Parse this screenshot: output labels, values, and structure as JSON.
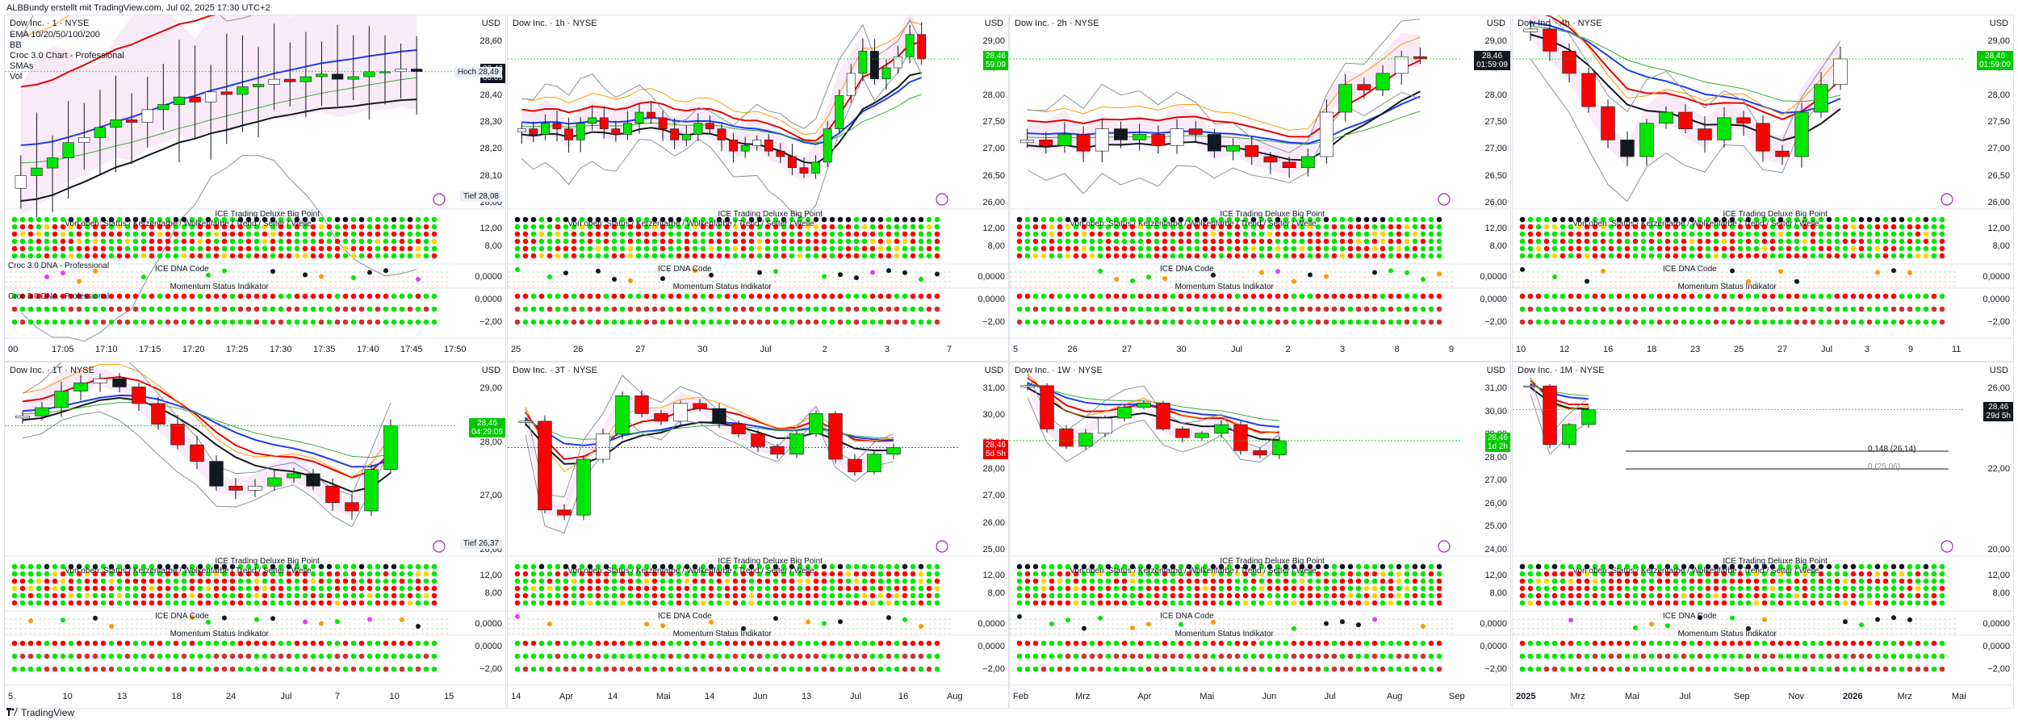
{
  "header": {
    "title": "ALBBundy erstellt mit TradingView.com, Jul 02, 2025 17:30 UTC+2"
  },
  "footer": {
    "brand": "TradingView",
    "logo": "tradingview-logo-icon"
  },
  "colors": {
    "up": "#00e600",
    "down": "#ff0000",
    "price_green": "#00c800",
    "price_red": "#f00000",
    "price_black": "#131722"
  },
  "common": {
    "currency": "USD",
    "sub1_title": "ICE Trading Deluxe Big Point",
    "sub1_sub": "Von oben: Status / Kerzenfarbe / Wolkenfarbe / Trend / Setter / Welle",
    "sub2_title": "ICE DNA Code",
    "sub3_title": "Momentum Status Indikator",
    "sub1_ticks": [
      "12,00",
      "8,00"
    ],
    "sub2_ticks": [
      "0,0000",
      "0,0000",
      "−2,00"
    ]
  },
  "panels": [
    {
      "id": "p1",
      "title": "Dow Inc. · 1 · NYSE",
      "info": [
        "EMA 10/20/50/100/200",
        "BB",
        "Croc 3.0 Chart - Professional",
        "SMAs",
        "Vol"
      ],
      "yticks": [
        "28,60",
        "28,50",
        "28,40",
        "28,30",
        "28,20",
        "28,10",
        "28,00"
      ],
      "price": {
        "value": "28,46",
        "sub": "00:09",
        "style": "black"
      },
      "hilo": [
        {
          "label": "Hoch",
          "value": "28,49"
        },
        {
          "label": "Tief",
          "value": "28,08"
        }
      ],
      "sub_labels": [
        "Croc 3.0 DNA - Professional",
        "Croc 3.0 DNA - Professional"
      ],
      "xlabels": [
        "00",
        "17:05",
        "17:10",
        "17:15",
        "17:20",
        "17:25",
        "17:30",
        "17:35",
        "17:40",
        "17:45",
        "17:50"
      ],
      "chart_data": {
        "type": "candlestick",
        "interval": "1",
        "ylim": [
          27.95,
          28.65
        ],
        "close": [
          28.05,
          28.08,
          28.12,
          28.18,
          28.2,
          28.24,
          28.27,
          28.26,
          28.31,
          28.33,
          28.36,
          28.34,
          28.38,
          28.37,
          28.4,
          28.41,
          28.43,
          28.42,
          28.44,
          28.45,
          28.43,
          28.44,
          28.46,
          28.46,
          28.47,
          28.46
        ]
      }
    },
    {
      "id": "p2",
      "title": "Dow Inc. · 1h · NYSE",
      "yticks": [
        "29,00",
        "28,50",
        "28,00",
        "27,50",
        "27,00",
        "26,50",
        "26,00"
      ],
      "price": {
        "value": "28,46",
        "sub": "59:09",
        "style": "green"
      },
      "xlabels": [
        "25",
        "26",
        "27",
        "30",
        "Jul",
        "2",
        "3",
        "7"
      ],
      "chart_data": {
        "type": "candlestick",
        "interval": "1h",
        "ylim": [
          25.9,
          29.1
        ],
        "close": [
          27.2,
          27.1,
          27.3,
          27.2,
          27.0,
          27.3,
          27.4,
          27.2,
          27.1,
          27.3,
          27.5,
          27.4,
          27.2,
          27.0,
          27.1,
          27.3,
          27.2,
          27.0,
          26.8,
          26.9,
          27.0,
          26.8,
          26.7,
          26.5,
          26.4,
          26.6,
          27.2,
          27.8,
          28.2,
          28.6,
          28.1,
          28.3,
          28.5,
          28.9,
          28.46
        ]
      }
    },
    {
      "id": "p3",
      "title": "Dow Inc. · 2h · NYSE",
      "yticks": [
        "29,00",
        "28,50",
        "28,00",
        "27,50",
        "27,00",
        "26,50",
        "26,00"
      ],
      "price": {
        "value": "28,46",
        "sub": "01:59:09",
        "style": "black"
      },
      "xlabels": [
        "5",
        "26",
        "27",
        "30",
        "Jul",
        "2",
        "3",
        "8",
        "9"
      ],
      "chart_data": {
        "type": "candlestick",
        "interval": "2h",
        "ylim": [
          25.9,
          29.1
        ],
        "close": [
          27.0,
          26.9,
          27.1,
          26.8,
          27.2,
          27.0,
          27.1,
          26.9,
          27.2,
          27.1,
          26.8,
          26.9,
          26.7,
          26.6,
          26.5,
          26.7,
          27.5,
          28.0,
          27.9,
          28.2,
          28.5,
          28.46
        ]
      }
    },
    {
      "id": "p4",
      "title": "Dow Inc. · 4h · NYSE",
      "yticks": [
        "29,00",
        "28,50",
        "28,00",
        "27,50",
        "27,00",
        "26,50",
        "26,00"
      ],
      "price": {
        "value": "28,46",
        "sub": "01:59:09",
        "style": "green"
      },
      "xlabels": [
        "10",
        "12",
        "16",
        "18",
        "23",
        "25",
        "27",
        "Jul",
        "3",
        "9",
        "11"
      ],
      "chart_data": {
        "type": "candlestick",
        "interval": "4h",
        "ylim": [
          25.9,
          29.1
        ],
        "close": [
          29.0,
          28.6,
          28.2,
          27.6,
          27.0,
          26.7,
          27.3,
          27.5,
          27.2,
          27.0,
          27.4,
          27.3,
          26.8,
          26.7,
          27.5,
          28.0,
          28.46
        ]
      }
    },
    {
      "id": "p5",
      "title": "Dow Inc. · 1T · NYSE",
      "yticks": [
        "29,00",
        "28,00",
        "27,00",
        "26,00"
      ],
      "price": {
        "value": "28,46",
        "sub": "04:29:09",
        "style": "green"
      },
      "hilo": [
        {
          "label": "Tief",
          "value": "26,37"
        }
      ],
      "xlabels": [
        "5",
        "10",
        "13",
        "18",
        "24",
        "Jul",
        "7",
        "10",
        "15"
      ],
      "chart_data": {
        "type": "candlestick",
        "interval": "1D",
        "ylim": [
          25.5,
          29.8
        ],
        "close": [
          28.7,
          28.9,
          29.3,
          29.5,
          29.6,
          29.4,
          29.0,
          28.5,
          28.0,
          27.6,
          27.0,
          26.9,
          27.0,
          27.2,
          27.3,
          27.0,
          26.6,
          26.4,
          27.4,
          28.46
        ]
      }
    },
    {
      "id": "p6",
      "title": "Dow Inc. · 3T · NYSE",
      "yticks": [
        "31,00",
        "30,00",
        "29,00",
        "28,00",
        "27,00",
        "26,00",
        "25,00"
      ],
      "price": {
        "value": "28,46",
        "sub": "5d 5h",
        "style": "red"
      },
      "xlabels": [
        "14",
        "Apr",
        "14",
        "Mai",
        "14",
        "Jun",
        "13",
        "Jul",
        "16",
        "Aug"
      ],
      "chart_data": {
        "type": "candlestick",
        "interval": "3D",
        "ylim": [
          24.5,
          31.5
        ],
        "close": [
          29.5,
          26.0,
          25.8,
          28.0,
          29.0,
          30.5,
          29.8,
          29.5,
          30.2,
          30.0,
          29.4,
          29.0,
          28.5,
          28.2,
          29.0,
          29.8,
          28.0,
          27.5,
          28.2,
          28.46
        ]
      }
    },
    {
      "id": "p7",
      "title": "Dow Inc. · 1W · NYSE",
      "yticks": [
        "31,00",
        "30,00",
        "29,00",
        "28,00",
        "27,00",
        "26,00",
        "25,00",
        "24,00"
      ],
      "price": {
        "value": "28,46",
        "sub": "1d 2h",
        "style": "green"
      },
      "xlabels": [
        "Feb",
        "Mrz",
        "Apr",
        "Mai",
        "Jun",
        "Jul",
        "Aug",
        "Sep"
      ],
      "chart_data": {
        "type": "candlestick",
        "interval": "1W",
        "ylim": [
          23.5,
          31.7
        ],
        "close": [
          31.0,
          29.0,
          28.2,
          28.8,
          29.5,
          30.0,
          30.2,
          29.0,
          28.6,
          28.8,
          29.2,
          28.0,
          27.8,
          28.46
        ]
      }
    },
    {
      "id": "p8",
      "title": "Dow Inc. · 1M · NYSE",
      "yticks": [
        "26,00",
        "22,00",
        "20,00"
      ],
      "price": {
        "value": "28,46",
        "sub": "29d 5h",
        "style": "black"
      },
      "levels": [
        {
          "label": "0,148 (26,14)"
        },
        {
          "label": "0 (25,06)"
        }
      ],
      "xlabels": [
        "2025",
        "Mrz",
        "Mai",
        "Jul",
        "Sep",
        "Nov",
        "2026",
        "Mrz",
        "Mai"
      ],
      "xbold": [
        "2025",
        "2026"
      ],
      "chart_data": {
        "type": "candlestick",
        "interval": "1M",
        "ylim": [
          19.5,
          31.0
        ],
        "close": [
          30.0,
          26.2,
          27.5,
          28.46
        ]
      }
    }
  ]
}
